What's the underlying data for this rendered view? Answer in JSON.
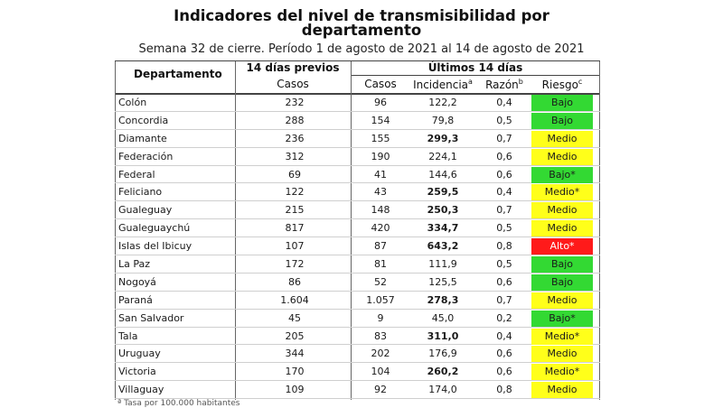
{
  "title_line1": "Indicadores del nivel de transmisibilidad por",
  "title_line2": "departamento",
  "subtitle": "Semana 32 de cierre. Período 1 de agosto de 2021 al 14 de agosto de 2021",
  "headers": {
    "departamento": "Departamento",
    "previos_group": "14 días previos",
    "previos_casos": "Casos",
    "ultimos_group": "Últimos 14 días",
    "casos": "Casos",
    "incidencia": "Incidencia",
    "incidencia_sup": "a",
    "razon": "Razón",
    "razon_sup": "b",
    "riesgo": "Riesgo",
    "riesgo_sup": "c"
  },
  "colors": {
    "bajo": "#33d933",
    "medio": "#ffff1a",
    "alto": "#ff1a1a"
  },
  "rows": [
    {
      "dep": "Colón",
      "prev": "232",
      "cases": "96",
      "inc": "122,2",
      "bold": false,
      "raz": "0,4",
      "risk": "Bajo",
      "level": "bajo"
    },
    {
      "dep": "Concordia",
      "prev": "288",
      "cases": "154",
      "inc": "79,8",
      "bold": false,
      "raz": "0,5",
      "risk": "Bajo",
      "level": "bajo"
    },
    {
      "dep": "Diamante",
      "prev": "236",
      "cases": "155",
      "inc": "299,3",
      "bold": true,
      "raz": "0,7",
      "risk": "Medio",
      "level": "medio"
    },
    {
      "dep": "Federación",
      "prev": "312",
      "cases": "190",
      "inc": "224,1",
      "bold": false,
      "raz": "0,6",
      "risk": "Medio",
      "level": "medio"
    },
    {
      "dep": "Federal",
      "prev": "69",
      "cases": "41",
      "inc": "144,6",
      "bold": false,
      "raz": "0,6",
      "risk": "Bajo*",
      "level": "bajo"
    },
    {
      "dep": "Feliciano",
      "prev": "122",
      "cases": "43",
      "inc": "259,5",
      "bold": true,
      "raz": "0,4",
      "risk": "Medio*",
      "level": "medio"
    },
    {
      "dep": "Gualeguay",
      "prev": "215",
      "cases": "148",
      "inc": "250,3",
      "bold": true,
      "raz": "0,7",
      "risk": "Medio",
      "level": "medio"
    },
    {
      "dep": "Gualeguaychú",
      "prev": "817",
      "cases": "420",
      "inc": "334,7",
      "bold": true,
      "raz": "0,5",
      "risk": "Medio",
      "level": "medio"
    },
    {
      "dep": "Islas del Ibicuy",
      "prev": "107",
      "cases": "87",
      "inc": "643,2",
      "bold": true,
      "raz": "0,8",
      "risk": "Alto*",
      "level": "alto"
    },
    {
      "dep": "La Paz",
      "prev": "172",
      "cases": "81",
      "inc": "111,9",
      "bold": false,
      "raz": "0,5",
      "risk": "Bajo",
      "level": "bajo"
    },
    {
      "dep": "Nogoyá",
      "prev": "86",
      "cases": "52",
      "inc": "125,5",
      "bold": false,
      "raz": "0,6",
      "risk": "Bajo",
      "level": "bajo"
    },
    {
      "dep": "Paraná",
      "prev": "1.604",
      "cases": "1.057",
      "inc": "278,3",
      "bold": true,
      "raz": "0,7",
      "risk": "Medio",
      "level": "medio"
    },
    {
      "dep": "San Salvador",
      "prev": "45",
      "cases": "9",
      "inc": "45,0",
      "bold": false,
      "raz": "0,2",
      "risk": "Bajo*",
      "level": "bajo"
    },
    {
      "dep": "Tala",
      "prev": "205",
      "cases": "83",
      "inc": "311,0",
      "bold": true,
      "raz": "0,4",
      "risk": "Medio*",
      "level": "medio"
    },
    {
      "dep": "Uruguay",
      "prev": "344",
      "cases": "202",
      "inc": "176,9",
      "bold": false,
      "raz": "0,6",
      "risk": "Medio",
      "level": "medio"
    },
    {
      "dep": "Victoria",
      "prev": "170",
      "cases": "104",
      "inc": "260,2",
      "bold": true,
      "raz": "0,6",
      "risk": "Medio*",
      "level": "medio"
    },
    {
      "dep": "Villaguay",
      "prev": "109",
      "cases": "92",
      "inc": "174,0",
      "bold": false,
      "raz": "0,8",
      "risk": "Medio",
      "level": "medio"
    }
  ],
  "footnote": "ª Tasa por 100.000 habitantes"
}
